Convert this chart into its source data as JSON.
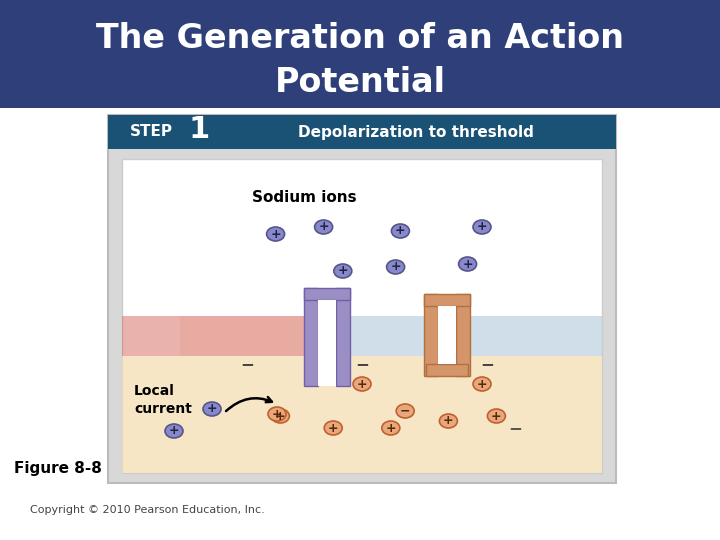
{
  "title_line1": "The Generation of an Action",
  "title_line2": "Potential",
  "title_bg": "#2E3F7A",
  "title_color": "#FFFFFF",
  "step_label": "STEP",
  "step_number": "1",
  "step_desc": "Depolarization to threshold",
  "step_bg": "#1A5276",
  "figure_label": "Figure 8-8",
  "copyright": "Copyright © 2010 Pearson Education, Inc.",
  "bg_color": "#FFFFFF",
  "sodium_ions_label": "Sodium ions",
  "local_current_label1": "Local",
  "local_current_label2": "current"
}
